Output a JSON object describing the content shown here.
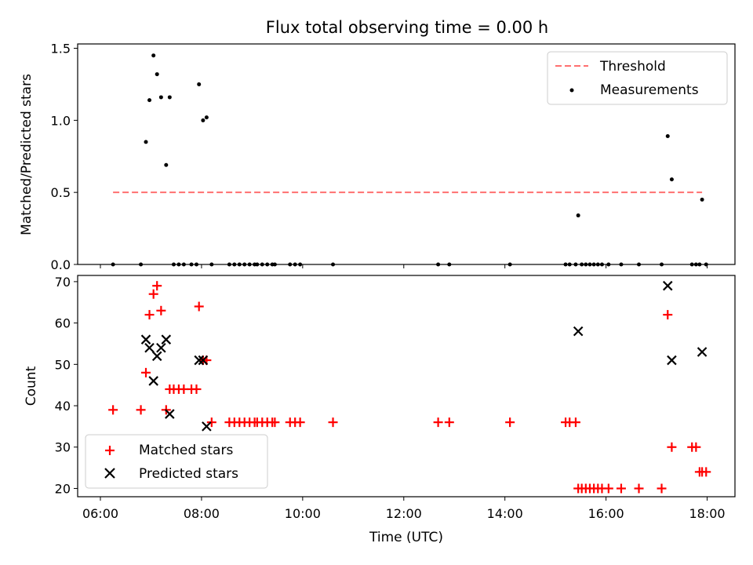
{
  "chart_data": [
    {
      "type": "scatter",
      "title": "Flux total observing time = 0.00 h",
      "ylabel": "Matched/Predicted stars",
      "xlim_hours": [
        5.55,
        18.55
      ],
      "ylim": [
        0,
        1.53
      ],
      "x_ticks": [
        6,
        8,
        10,
        12,
        14,
        16,
        18
      ],
      "y_ticks": [
        0.0,
        0.5,
        1.0,
        1.5
      ],
      "y_tick_labels": [
        "0.0",
        "0.5",
        "1.0",
        "1.5"
      ],
      "legend": {
        "placement": "top-right",
        "entries": [
          "Threshold",
          "Measurements"
        ]
      },
      "threshold": {
        "name": "Threshold",
        "value": 0.5,
        "x_range": [
          6.25,
          17.9
        ],
        "color": "#ff7070",
        "style": "dashed"
      },
      "measurements": {
        "name": "Measurements",
        "color": "#000000",
        "points": [
          [
            6.25,
            0
          ],
          [
            6.8,
            0
          ],
          [
            6.9,
            0.85
          ],
          [
            6.97,
            1.14
          ],
          [
            7.05,
            1.45
          ],
          [
            7.12,
            1.32
          ],
          [
            7.2,
            1.16
          ],
          [
            7.3,
            0.69
          ],
          [
            7.37,
            1.16
          ],
          [
            7.45,
            0
          ],
          [
            7.55,
            0
          ],
          [
            7.65,
            0
          ],
          [
            7.8,
            0
          ],
          [
            7.9,
            0
          ],
          [
            7.95,
            1.25
          ],
          [
            8.03,
            1.0
          ],
          [
            8.1,
            1.02
          ],
          [
            8.2,
            0
          ],
          [
            8.55,
            0
          ],
          [
            8.65,
            0
          ],
          [
            8.75,
            0
          ],
          [
            8.85,
            0
          ],
          [
            8.95,
            0
          ],
          [
            9.05,
            0
          ],
          [
            9.1,
            0
          ],
          [
            9.2,
            0
          ],
          [
            9.3,
            0
          ],
          [
            9.4,
            0
          ],
          [
            9.45,
            0
          ],
          [
            9.75,
            0
          ],
          [
            9.85,
            0
          ],
          [
            9.95,
            0
          ],
          [
            10.6,
            0
          ],
          [
            12.68,
            0
          ],
          [
            12.9,
            0
          ],
          [
            14.1,
            0
          ],
          [
            15.2,
            0
          ],
          [
            15.28,
            0
          ],
          [
            15.4,
            0
          ],
          [
            15.45,
            0.34
          ],
          [
            15.52,
            0
          ],
          [
            15.6,
            0
          ],
          [
            15.68,
            0
          ],
          [
            15.76,
            0
          ],
          [
            15.84,
            0
          ],
          [
            15.92,
            0
          ],
          [
            16.05,
            0
          ],
          [
            16.3,
            0
          ],
          [
            16.65,
            0
          ],
          [
            17.1,
            0
          ],
          [
            17.22,
            0.89
          ],
          [
            17.3,
            0.59
          ],
          [
            17.7,
            0
          ],
          [
            17.78,
            0
          ],
          [
            17.85,
            0
          ],
          [
            17.9,
            0.45
          ],
          [
            17.98,
            0
          ]
        ]
      }
    },
    {
      "type": "scatter",
      "xlabel": "Time (UTC)",
      "ylabel": "Count",
      "xlim_hours": [
        5.55,
        18.55
      ],
      "ylim": [
        18,
        71.5
      ],
      "x_ticks": [
        6,
        8,
        10,
        12,
        14,
        16,
        18
      ],
      "x_tick_labels": [
        "06:00",
        "08:00",
        "10:00",
        "12:00",
        "14:00",
        "16:00",
        "18:00"
      ],
      "y_ticks": [
        20,
        30,
        40,
        50,
        60,
        70
      ],
      "y_tick_labels": [
        "20",
        "30",
        "40",
        "50",
        "60",
        "70"
      ],
      "legend": {
        "placement": "bottom-left",
        "entries": [
          "Matched stars",
          "Predicted stars"
        ]
      },
      "series": [
        {
          "name": "Matched stars",
          "marker": "plus",
          "color": "#ff0000",
          "points": [
            [
              6.25,
              39
            ],
            [
              6.8,
              39
            ],
            [
              6.9,
              48
            ],
            [
              6.97,
              62
            ],
            [
              7.05,
              67
            ],
            [
              7.12,
              69
            ],
            [
              7.2,
              63
            ],
            [
              7.3,
              39
            ],
            [
              7.37,
              44
            ],
            [
              7.45,
              44
            ],
            [
              7.55,
              44
            ],
            [
              7.65,
              44
            ],
            [
              7.8,
              44
            ],
            [
              7.9,
              44
            ],
            [
              7.95,
              64
            ],
            [
              8.03,
              51
            ],
            [
              8.1,
              51
            ],
            [
              8.2,
              36
            ],
            [
              8.55,
              36
            ],
            [
              8.65,
              36
            ],
            [
              8.75,
              36
            ],
            [
              8.85,
              36
            ],
            [
              8.95,
              36
            ],
            [
              9.05,
              36
            ],
            [
              9.1,
              36
            ],
            [
              9.2,
              36
            ],
            [
              9.3,
              36
            ],
            [
              9.4,
              36
            ],
            [
              9.45,
              36
            ],
            [
              9.75,
              36
            ],
            [
              9.85,
              36
            ],
            [
              9.95,
              36
            ],
            [
              10.6,
              36
            ],
            [
              12.68,
              36
            ],
            [
              12.9,
              36
            ],
            [
              14.1,
              36
            ],
            [
              15.2,
              36
            ],
            [
              15.28,
              36
            ],
            [
              15.4,
              36
            ],
            [
              15.45,
              20
            ],
            [
              15.52,
              20
            ],
            [
              15.6,
              20
            ],
            [
              15.68,
              20
            ],
            [
              15.76,
              20
            ],
            [
              15.84,
              20
            ],
            [
              15.92,
              20
            ],
            [
              16.05,
              20
            ],
            [
              16.3,
              20
            ],
            [
              16.65,
              20
            ],
            [
              17.1,
              20
            ],
            [
              17.22,
              62
            ],
            [
              17.3,
              30
            ],
            [
              17.7,
              30
            ],
            [
              17.78,
              30
            ],
            [
              17.85,
              24
            ],
            [
              17.9,
              24
            ],
            [
              17.98,
              24
            ]
          ]
        },
        {
          "name": "Predicted stars",
          "marker": "x",
          "color": "#000000",
          "points": [
            [
              6.9,
              56
            ],
            [
              6.97,
              54
            ],
            [
              7.05,
              46
            ],
            [
              7.12,
              52
            ],
            [
              7.2,
              54
            ],
            [
              7.3,
              56
            ],
            [
              7.37,
              38
            ],
            [
              7.95,
              51
            ],
            [
              8.03,
              51
            ],
            [
              8.1,
              35
            ],
            [
              15.45,
              58
            ],
            [
              17.22,
              69
            ],
            [
              17.3,
              51
            ],
            [
              17.9,
              53
            ]
          ]
        }
      ]
    }
  ]
}
